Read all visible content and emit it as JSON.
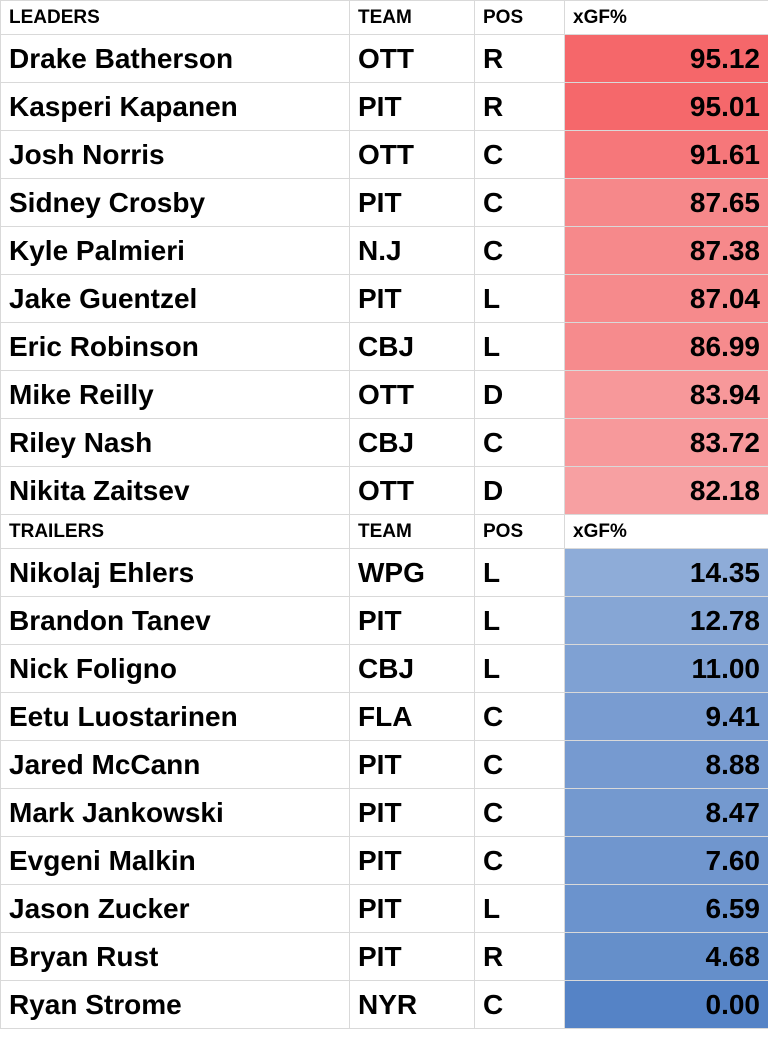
{
  "leaders": {
    "header": {
      "name": "LEADERS",
      "team": "TEAM",
      "pos": "POS",
      "value": "xGF%"
    },
    "rows": [
      {
        "name": "Drake Batherson",
        "team": "OTT",
        "pos": "R",
        "value": "95.12",
        "color": "#f5676a"
      },
      {
        "name": "Kasperi Kapanen",
        "team": "PIT",
        "pos": "R",
        "value": "95.01",
        "color": "#f5686b"
      },
      {
        "name": "Josh Norris",
        "team": "OTT",
        "pos": "C",
        "value": "91.61",
        "color": "#f6777a"
      },
      {
        "name": "Sidney Crosby",
        "team": "PIT",
        "pos": "C",
        "value": "87.65",
        "color": "#f6888a"
      },
      {
        "name": "Kyle Palmieri",
        "team": "N.J",
        "pos": "C",
        "value": "87.38",
        "color": "#f6898b"
      },
      {
        "name": "Jake Guentzel",
        "team": "PIT",
        "pos": "L",
        "value": "87.04",
        "color": "#f68a8c"
      },
      {
        "name": "Eric Robinson",
        "team": "CBJ",
        "pos": "L",
        "value": "86.99",
        "color": "#f68b8d"
      },
      {
        "name": "Mike Reilly",
        "team": "OTT",
        "pos": "D",
        "value": "83.94",
        "color": "#f7989a"
      },
      {
        "name": "Riley Nash",
        "team": "CBJ",
        "pos": "C",
        "value": "83.72",
        "color": "#f7999b"
      },
      {
        "name": "Nikita Zaitsev",
        "team": "OTT",
        "pos": "D",
        "value": "82.18",
        "color": "#f7a0a2"
      }
    ]
  },
  "trailers": {
    "header": {
      "name": "TRAILERS",
      "team": "TEAM",
      "pos": "POS",
      "value": "xGF%"
    },
    "rows": [
      {
        "name": "Nikolaj Ehlers",
        "team": "WPG",
        "pos": "L",
        "value": "14.35",
        "color": "#8eacd8"
      },
      {
        "name": "Brandon Tanev",
        "team": "PIT",
        "pos": "L",
        "value": "12.78",
        "color": "#86a6d5"
      },
      {
        "name": "Nick Foligno",
        "team": "CBJ",
        "pos": "L",
        "value": "11.00",
        "color": "#7fa1d3"
      },
      {
        "name": "Eetu Luostarinen",
        "team": "FLA",
        "pos": "C",
        "value": "9.41",
        "color": "#799cd1"
      },
      {
        "name": "Jared McCann",
        "team": "PIT",
        "pos": "C",
        "value": "8.88",
        "color": "#769ad0"
      },
      {
        "name": "Mark Jankowski",
        "team": "PIT",
        "pos": "C",
        "value": "8.47",
        "color": "#7499cf"
      },
      {
        "name": "Evgeni Malkin",
        "team": "PIT",
        "pos": "C",
        "value": "7.60",
        "color": "#7096ce"
      },
      {
        "name": "Jason Zucker",
        "team": "PIT",
        "pos": "L",
        "value": "6.59",
        "color": "#6b93cd"
      },
      {
        "name": "Bryan Rust",
        "team": "PIT",
        "pos": "R",
        "value": "4.68",
        "color": "#658fca"
      },
      {
        "name": "Ryan Strome",
        "team": "NYR",
        "pos": "C",
        "value": "0.00",
        "color": "#5583c6"
      }
    ]
  }
}
